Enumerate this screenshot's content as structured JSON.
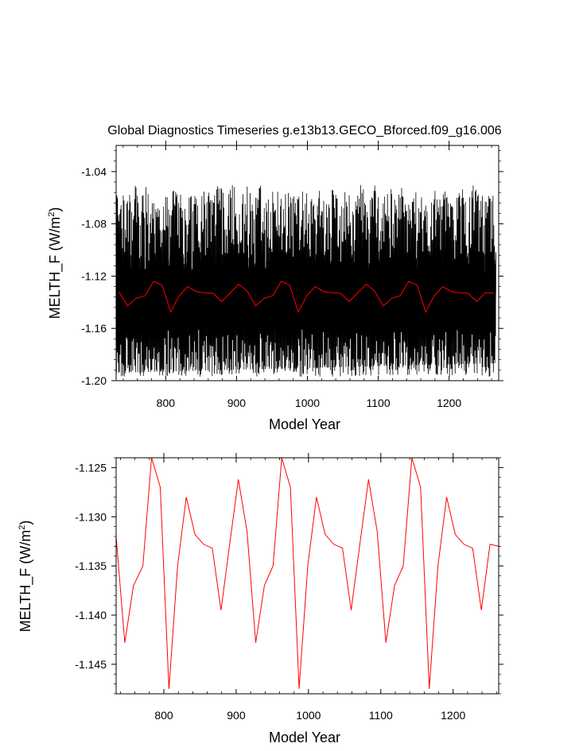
{
  "chart_data": [
    {
      "type": "line",
      "title": "Global Diagnostics Timeseries g.e13b13.GECO_Bforced.f09_g16.006",
      "xlabel": "Model Year",
      "ylabel": "MELTH_F (W/m",
      "ylabel_sup": "2",
      "ylabel_end": ")",
      "xlim": [
        730,
        1270
      ],
      "ylim": [
        -1.2,
        -1.02
      ],
      "xticks": [
        800,
        900,
        1000,
        1100,
        1200
      ],
      "xtick_labels": [
        "800",
        "900",
        "1000",
        "1100",
        "1200"
      ],
      "yticks": [
        -1.2,
        -1.16,
        -1.12,
        -1.08,
        -1.04
      ],
      "ytick_labels": [
        "-1.20",
        "-1.16",
        "-1.12",
        "-1.08",
        "-1.04"
      ],
      "series": [
        {
          "kind": "monthly",
          "color": "#000000",
          "x_start": 730,
          "x_end": 1266,
          "cycle_years": 60,
          "y_low": -1.2,
          "y_high": -1.047
        },
        {
          "kind": "annual",
          "color": "#ff0000",
          "x": [
            734,
            746,
            758,
            771,
            783,
            795,
            807,
            819,
            831,
            843,
            855,
            867,
            879,
            891,
            903,
            915,
            927,
            939,
            951,
            963,
            975,
            987,
            999,
            1011,
            1023,
            1035,
            1047,
            1059,
            1071,
            1083,
            1095,
            1107,
            1119,
            1131,
            1143,
            1155,
            1167,
            1179,
            1191,
            1203,
            1215,
            1227,
            1239,
            1251,
            1263
          ],
          "y": [
            -1.132,
            -1.1428,
            -1.137,
            -1.135,
            -1.124,
            -1.127,
            -1.1475,
            -1.135,
            -1.128,
            -1.1318,
            -1.1328,
            -1.1332,
            -1.1395,
            -1.1328,
            -1.1262,
            -1.1315,
            -1.1428,
            -1.137,
            -1.135,
            -1.124,
            -1.127,
            -1.1475,
            -1.135,
            -1.128,
            -1.1318,
            -1.1328,
            -1.1332,
            -1.1395,
            -1.1328,
            -1.1262,
            -1.1315,
            -1.1428,
            -1.137,
            -1.135,
            -1.124,
            -1.127,
            -1.1475,
            -1.135,
            -1.128,
            -1.1318,
            -1.1328,
            -1.1332,
            -1.1395,
            -1.1328,
            -1.133
          ]
        }
      ]
    },
    {
      "type": "line",
      "title": "",
      "xlabel": "Model Year",
      "ylabel": "MELTH_F (W/m",
      "ylabel_sup": "2",
      "ylabel_end": ")",
      "xlim": [
        734,
        1263
      ],
      "ylim": [
        -1.148,
        -1.124
      ],
      "xticks": [
        800,
        900,
        1000,
        1100,
        1200
      ],
      "xtick_labels": [
        "800",
        "900",
        "1000",
        "1100",
        "1200"
      ],
      "yticks": [
        -1.145,
        -1.14,
        -1.135,
        -1.13,
        -1.125
      ],
      "ytick_labels": [
        "-1.145",
        "-1.140",
        "-1.135",
        "-1.130",
        "-1.125"
      ],
      "series": [
        {
          "kind": "annual",
          "color": "#ff0000",
          "x": [
            734,
            746,
            758,
            771,
            783,
            795,
            807,
            819,
            831,
            843,
            855,
            867,
            879,
            891,
            903,
            915,
            927,
            939,
            951,
            963,
            975,
            987,
            999,
            1011,
            1023,
            1035,
            1047,
            1059,
            1071,
            1083,
            1095,
            1107,
            1119,
            1131,
            1143,
            1155,
            1167,
            1179,
            1191,
            1203,
            1215,
            1227,
            1239,
            1251,
            1263
          ],
          "y": [
            -1.132,
            -1.1428,
            -1.137,
            -1.135,
            -1.124,
            -1.127,
            -1.1475,
            -1.135,
            -1.128,
            -1.1318,
            -1.1328,
            -1.1332,
            -1.1395,
            -1.1328,
            -1.1262,
            -1.1315,
            -1.1428,
            -1.137,
            -1.135,
            -1.124,
            -1.127,
            -1.1475,
            -1.135,
            -1.128,
            -1.1318,
            -1.1328,
            -1.1332,
            -1.1395,
            -1.1328,
            -1.1262,
            -1.1315,
            -1.1428,
            -1.137,
            -1.135,
            -1.124,
            -1.127,
            -1.1475,
            -1.135,
            -1.128,
            -1.1318,
            -1.1328,
            -1.1332,
            -1.1395,
            -1.1328,
            -1.133
          ]
        }
      ]
    }
  ]
}
